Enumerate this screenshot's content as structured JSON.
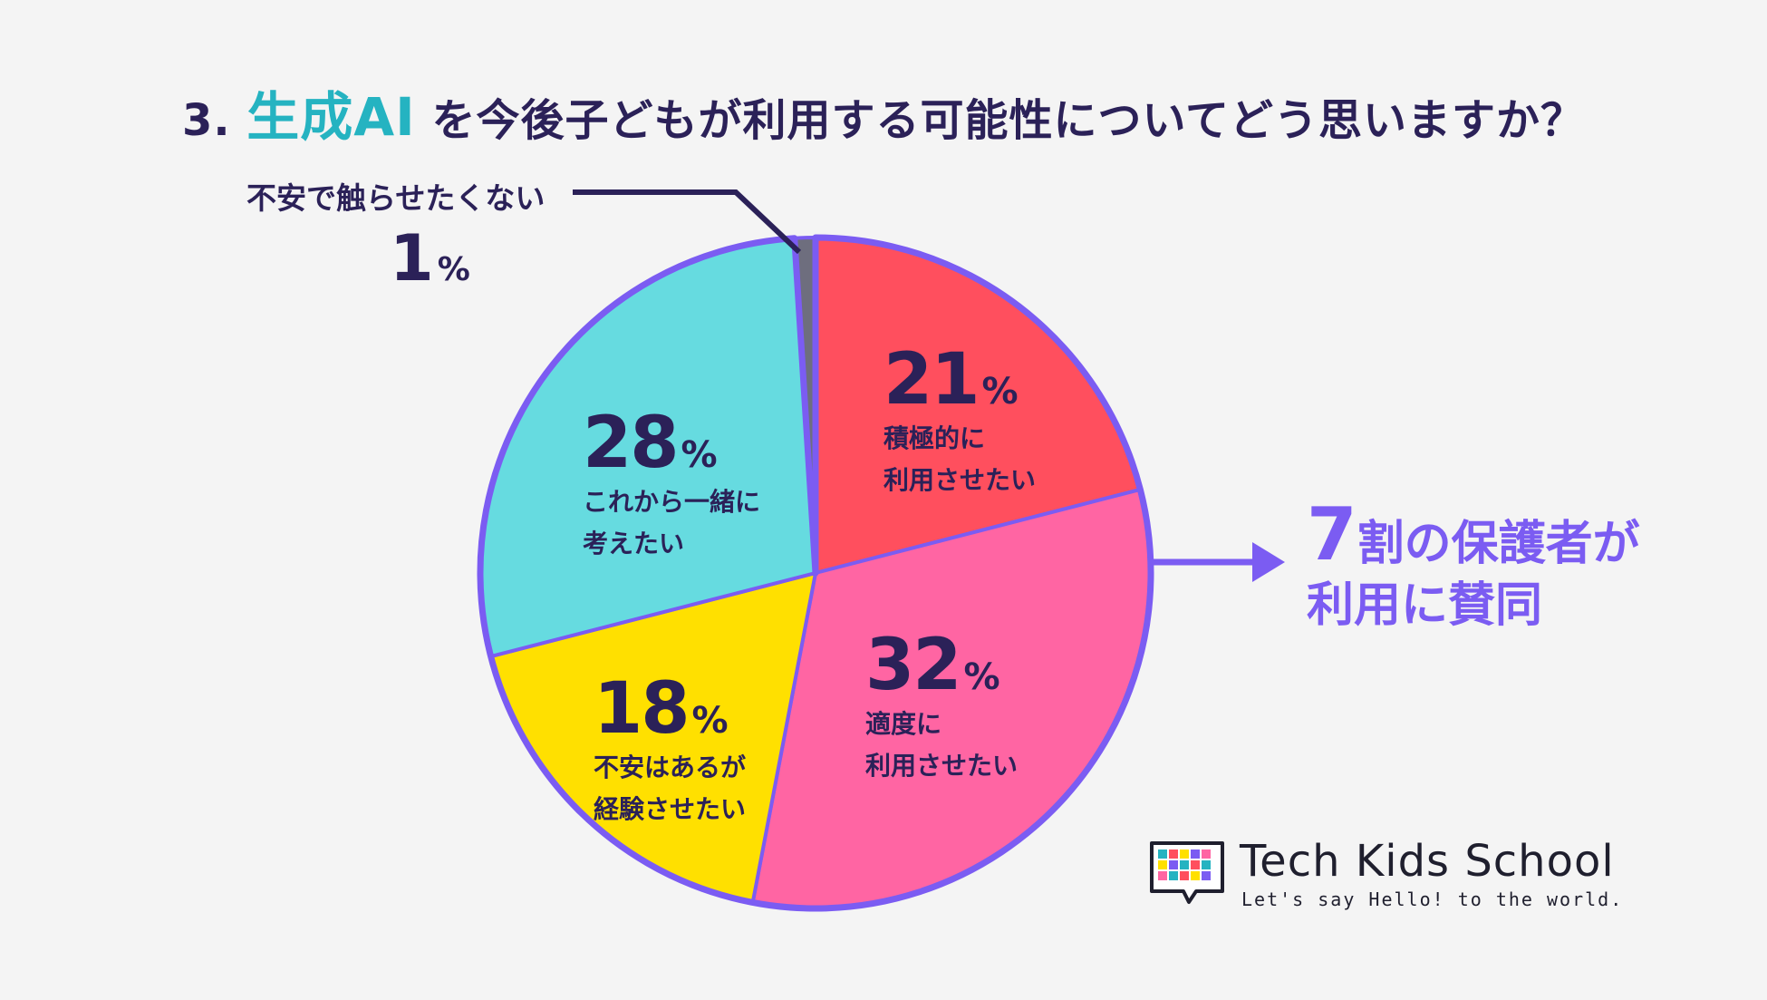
{
  "title": {
    "prefix": "3. ",
    "accent": "生成AI",
    "rest": " を今後子どもが利用する可能性についてどう思いますか？"
  },
  "chart_data": {
    "type": "pie",
    "title": "3. 生成AI を今後子どもが利用する可能性についてどう思いますか？",
    "start": "12 o'clock, clockwise",
    "slices": [
      {
        "label_lines": [
          "積極的に",
          "利用させたい"
        ],
        "value": 21,
        "color": "#ff4f5e"
      },
      {
        "label_lines": [
          "適度に",
          "利用させたい"
        ],
        "value": 32,
        "color": "#ff65a3"
      },
      {
        "label_lines": [
          "不安はあるが",
          "経験させたい"
        ],
        "value": 18,
        "color": "#ffe000"
      },
      {
        "label_lines": [
          "これから一緒に",
          "考えたい"
        ],
        "value": 28,
        "color": "#66dbe0"
      },
      {
        "label_lines": [
          "不安で触らせたくない"
        ],
        "value": 1,
        "color": "#6e6e7e"
      }
    ],
    "highlight_color": "#7b5cf2",
    "percent_sign": "%"
  },
  "summary": {
    "big": "7",
    "line1_rest": "割の保護者が",
    "line2": "利用に賛同"
  },
  "brand": {
    "name": "Tech Kids School",
    "tagline": "Let's say Hello! to the world."
  },
  "colors": {
    "text": "#2b2158",
    "accent": "#25b3c1",
    "highlight": "#7b5cf2"
  }
}
